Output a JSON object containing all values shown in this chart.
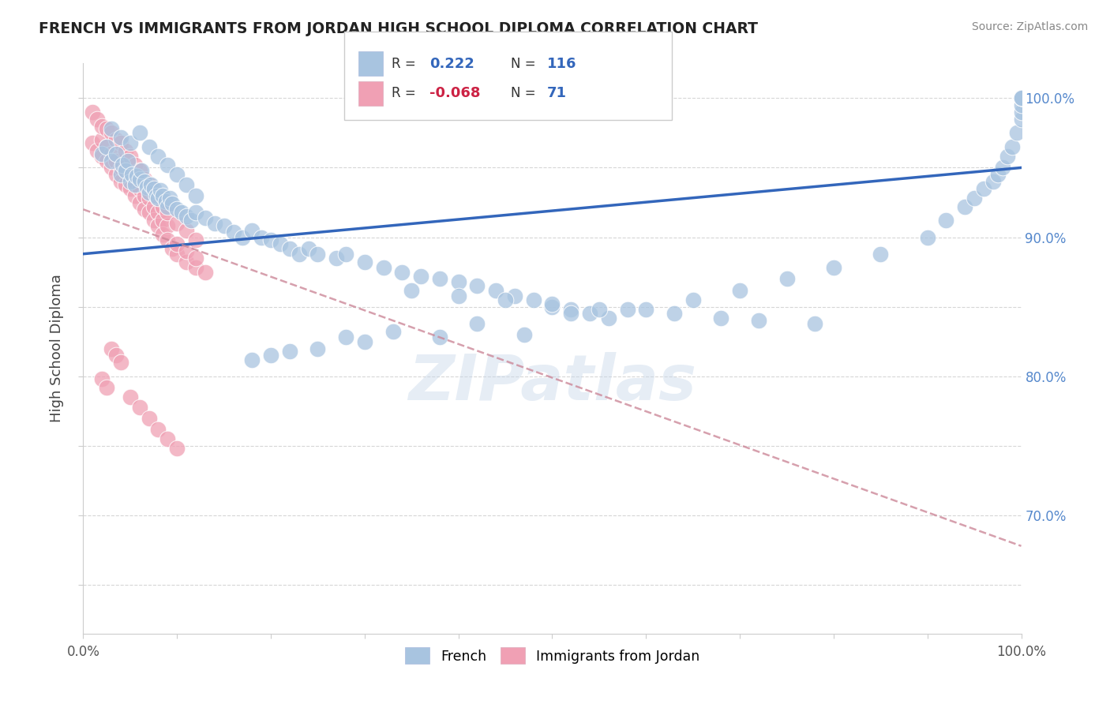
{
  "title": "FRENCH VS IMMIGRANTS FROM JORDAN HIGH SCHOOL DIPLOMA CORRELATION CHART",
  "source": "Source: ZipAtlas.com",
  "ylabel": "High School Diploma",
  "x_min": 0.0,
  "x_max": 1.0,
  "y_min": 0.615,
  "y_max": 1.025,
  "x_ticks": [
    0.0,
    0.1,
    0.2,
    0.3,
    0.4,
    0.5,
    0.6,
    0.7,
    0.8,
    0.9,
    1.0
  ],
  "x_ticklabels": [
    "0.0%",
    "",
    "",
    "",
    "",
    "",
    "",
    "",
    "",
    "",
    "100.0%"
  ],
  "y_ticks": [
    0.65,
    0.7,
    0.75,
    0.8,
    0.85,
    0.9,
    0.95,
    1.0
  ],
  "right_y_ticklabels": [
    "",
    "70.0%",
    "",
    "80.0%",
    "",
    "90.0%",
    "",
    "100.0%"
  ],
  "french_R": 0.222,
  "french_N": 116,
  "jordan_R": -0.068,
  "jordan_N": 71,
  "french_color": "#a8c4e0",
  "jordan_color": "#f0a0b4",
  "french_line_color": "#3366bb",
  "jordan_line_color": "#cc8899",
  "watermark": "ZIPatlas",
  "background_color": "#ffffff",
  "grid_color": "#cccccc",
  "french_line_x0": 0.0,
  "french_line_y0": 0.888,
  "french_line_x1": 1.0,
  "french_line_y1": 0.95,
  "jordan_line_x0": 0.0,
  "jordan_line_y0": 0.92,
  "jordan_line_x1": 1.0,
  "jordan_line_y1": 0.678,
  "french_scatter_x": [
    0.02,
    0.025,
    0.03,
    0.035,
    0.04,
    0.042,
    0.045,
    0.048,
    0.05,
    0.052,
    0.055,
    0.057,
    0.06,
    0.062,
    0.065,
    0.068,
    0.07,
    0.072,
    0.075,
    0.078,
    0.08,
    0.082,
    0.085,
    0.088,
    0.09,
    0.092,
    0.095,
    0.1,
    0.105,
    0.11,
    0.115,
    0.12,
    0.13,
    0.14,
    0.15,
    0.16,
    0.17,
    0.18,
    0.19,
    0.2,
    0.21,
    0.22,
    0.23,
    0.24,
    0.25,
    0.27,
    0.28,
    0.3,
    0.32,
    0.34,
    0.36,
    0.38,
    0.4,
    0.42,
    0.44,
    0.46,
    0.48,
    0.5,
    0.52,
    0.54,
    0.56,
    0.6,
    0.65,
    0.7,
    0.75,
    0.8,
    0.85,
    0.9,
    0.92,
    0.94,
    0.95,
    0.96,
    0.97,
    0.975,
    0.98,
    0.985,
    0.99,
    0.995,
    1.0,
    1.0,
    1.0,
    1.0,
    1.0,
    1.0,
    1.0,
    0.03,
    0.04,
    0.05,
    0.06,
    0.07,
    0.08,
    0.09,
    0.1,
    0.11,
    0.12,
    0.35,
    0.4,
    0.45,
    0.5,
    0.55,
    0.47,
    0.38,
    0.3,
    0.25,
    0.22,
    0.2,
    0.18,
    0.42,
    0.33,
    0.28,
    0.52,
    0.58,
    0.63,
    0.68,
    0.72,
    0.78
  ],
  "french_scatter_y": [
    0.96,
    0.965,
    0.955,
    0.96,
    0.945,
    0.952,
    0.948,
    0.955,
    0.94,
    0.945,
    0.938,
    0.944,
    0.942,
    0.948,
    0.94,
    0.936,
    0.932,
    0.938,
    0.935,
    0.93,
    0.928,
    0.934,
    0.93,
    0.926,
    0.922,
    0.928,
    0.924,
    0.92,
    0.918,
    0.915,
    0.912,
    0.918,
    0.914,
    0.91,
    0.908,
    0.904,
    0.9,
    0.905,
    0.9,
    0.898,
    0.895,
    0.892,
    0.888,
    0.892,
    0.888,
    0.885,
    0.888,
    0.882,
    0.878,
    0.875,
    0.872,
    0.87,
    0.868,
    0.865,
    0.862,
    0.858,
    0.855,
    0.85,
    0.848,
    0.845,
    0.842,
    0.848,
    0.855,
    0.862,
    0.87,
    0.878,
    0.888,
    0.9,
    0.912,
    0.922,
    0.928,
    0.935,
    0.94,
    0.945,
    0.95,
    0.958,
    0.965,
    0.975,
    0.985,
    0.99,
    0.995,
    1.0,
    1.0,
    1.0,
    1.0,
    0.978,
    0.972,
    0.968,
    0.975,
    0.965,
    0.958,
    0.952,
    0.945,
    0.938,
    0.93,
    0.862,
    0.858,
    0.855,
    0.852,
    0.848,
    0.83,
    0.828,
    0.825,
    0.82,
    0.818,
    0.815,
    0.812,
    0.838,
    0.832,
    0.828,
    0.845,
    0.848,
    0.845,
    0.842,
    0.84,
    0.838
  ],
  "jordan_scatter_x": [
    0.01,
    0.015,
    0.02,
    0.02,
    0.025,
    0.025,
    0.03,
    0.03,
    0.035,
    0.035,
    0.04,
    0.04,
    0.045,
    0.045,
    0.05,
    0.05,
    0.055,
    0.055,
    0.06,
    0.06,
    0.065,
    0.065,
    0.07,
    0.07,
    0.075,
    0.075,
    0.08,
    0.08,
    0.085,
    0.085,
    0.09,
    0.09,
    0.095,
    0.1,
    0.1,
    0.11,
    0.11,
    0.12,
    0.12,
    0.13,
    0.01,
    0.015,
    0.02,
    0.025,
    0.03,
    0.035,
    0.04,
    0.045,
    0.05,
    0.055,
    0.06,
    0.065,
    0.07,
    0.075,
    0.08,
    0.085,
    0.09,
    0.1,
    0.11,
    0.12,
    0.03,
    0.035,
    0.04,
    0.02,
    0.025,
    0.05,
    0.06,
    0.07,
    0.08,
    0.09,
    0.1
  ],
  "jordan_scatter_y": [
    0.968,
    0.962,
    0.97,
    0.958,
    0.965,
    0.955,
    0.96,
    0.95,
    0.955,
    0.945,
    0.95,
    0.94,
    0.948,
    0.938,
    0.945,
    0.935,
    0.94,
    0.93,
    0.935,
    0.925,
    0.93,
    0.92,
    0.928,
    0.918,
    0.922,
    0.912,
    0.918,
    0.908,
    0.912,
    0.902,
    0.908,
    0.898,
    0.892,
    0.888,
    0.895,
    0.882,
    0.89,
    0.878,
    0.885,
    0.875,
    0.99,
    0.985,
    0.98,
    0.978,
    0.975,
    0.97,
    0.968,
    0.962,
    0.958,
    0.952,
    0.948,
    0.942,
    0.938,
    0.932,
    0.928,
    0.922,
    0.918,
    0.91,
    0.905,
    0.898,
    0.82,
    0.815,
    0.81,
    0.798,
    0.792,
    0.785,
    0.778,
    0.77,
    0.762,
    0.755,
    0.748
  ]
}
